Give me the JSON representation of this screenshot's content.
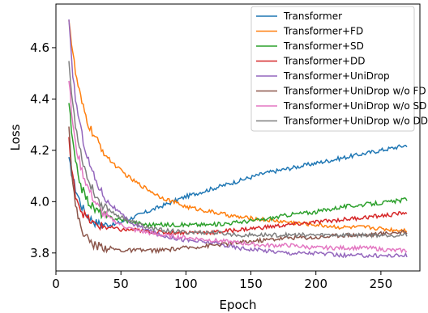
{
  "chart_data": {
    "type": "line",
    "xlabel": "Epoch",
    "ylabel": "Loss",
    "xlim": [
      0,
      280
    ],
    "ylim": [
      3.73,
      4.77
    ],
    "x_ticks": [
      0,
      50,
      100,
      150,
      200,
      250
    ],
    "y_ticks": [
      3.8,
      4.0,
      4.2,
      4.4,
      4.6
    ],
    "x_tick_labels": [
      "0",
      "50",
      "100",
      "150",
      "200",
      "250"
    ],
    "y_tick_labels": [
      "3.8",
      "4.0",
      "4.2",
      "4.4",
      "4.6"
    ],
    "grid": false,
    "legend_position": "top-right",
    "series": [
      {
        "name": "Transformer",
        "color": "#1f77b4",
        "x": [
          10,
          15,
          20,
          25,
          30,
          35,
          40,
          45,
          50,
          55,
          60,
          70,
          80,
          90,
          100,
          120,
          140,
          160,
          180,
          200,
          220,
          240,
          260,
          270
        ],
        "y": [
          4.16,
          4.05,
          3.98,
          3.94,
          3.92,
          3.91,
          3.91,
          3.91,
          3.92,
          3.93,
          3.94,
          3.96,
          3.98,
          4.0,
          4.02,
          4.05,
          4.08,
          4.11,
          4.13,
          4.15,
          4.17,
          4.19,
          4.21,
          4.22
        ]
      },
      {
        "name": "Transformer+FD",
        "color": "#ff7f0e",
        "x": [
          10,
          12,
          15,
          20,
          25,
          30,
          35,
          40,
          50,
          60,
          70,
          80,
          90,
          100,
          110,
          120,
          130,
          140,
          160,
          180,
          200,
          220,
          240,
          260,
          270
        ],
        "y": [
          4.72,
          4.62,
          4.5,
          4.38,
          4.3,
          4.25,
          4.21,
          4.17,
          4.12,
          4.08,
          4.05,
          4.02,
          4.0,
          3.98,
          3.97,
          3.96,
          3.95,
          3.94,
          3.93,
          3.92,
          3.91,
          3.9,
          3.9,
          3.89,
          3.89
        ]
      },
      {
        "name": "Transformer+SD",
        "color": "#2ca02c",
        "x": [
          10,
          12,
          15,
          20,
          25,
          30,
          40,
          50,
          60,
          70,
          80,
          100,
          120,
          140,
          160,
          180,
          200,
          220,
          240,
          260,
          270
        ],
        "y": [
          4.39,
          4.27,
          4.15,
          4.05,
          4.0,
          3.97,
          3.94,
          3.93,
          3.92,
          3.91,
          3.91,
          3.91,
          3.91,
          3.92,
          3.93,
          3.95,
          3.96,
          3.98,
          3.99,
          4.0,
          4.01
        ]
      },
      {
        "name": "Transformer+DD",
        "color": "#d62728",
        "x": [
          10,
          12,
          15,
          20,
          25,
          30,
          40,
          50,
          60,
          80,
          100,
          120,
          140,
          160,
          180,
          200,
          220,
          240,
          260,
          270
        ],
        "y": [
          4.25,
          4.12,
          4.03,
          3.96,
          3.93,
          3.91,
          3.9,
          3.89,
          3.89,
          3.88,
          3.88,
          3.88,
          3.89,
          3.9,
          3.91,
          3.92,
          3.93,
          3.94,
          3.95,
          3.96
        ]
      },
      {
        "name": "Transformer+UniDrop",
        "color": "#9467bd",
        "x": [
          10,
          12,
          15,
          20,
          25,
          30,
          35,
          40,
          50,
          60,
          70,
          80,
          100,
          120,
          140,
          160,
          180,
          200,
          220,
          240,
          260,
          270
        ],
        "y": [
          4.7,
          4.55,
          4.4,
          4.26,
          4.16,
          4.09,
          4.04,
          4.0,
          3.95,
          3.91,
          3.89,
          3.87,
          3.85,
          3.84,
          3.82,
          3.81,
          3.8,
          3.8,
          3.79,
          3.79,
          3.79,
          3.79
        ]
      },
      {
        "name": "Transformer+UniDrop w/o FD",
        "color": "#8c564b",
        "x": [
          10,
          12,
          15,
          20,
          25,
          30,
          40,
          50,
          60,
          80,
          100,
          120,
          140,
          160,
          180,
          200,
          220,
          240,
          260,
          270
        ],
        "y": [
          4.31,
          4.13,
          3.98,
          3.89,
          3.85,
          3.83,
          3.82,
          3.81,
          3.81,
          3.81,
          3.82,
          3.83,
          3.84,
          3.85,
          3.86,
          3.86,
          3.87,
          3.87,
          3.88,
          3.88
        ]
      },
      {
        "name": "Transformer+UniDrop w/o SD",
        "color": "#e377c2",
        "x": [
          10,
          12,
          15,
          20,
          25,
          30,
          35,
          40,
          50,
          60,
          70,
          80,
          100,
          120,
          140,
          160,
          180,
          200,
          220,
          240,
          260,
          270
        ],
        "y": [
          4.48,
          4.35,
          4.22,
          4.12,
          4.05,
          4.0,
          3.96,
          3.94,
          3.91,
          3.89,
          3.88,
          3.87,
          3.86,
          3.85,
          3.84,
          3.83,
          3.83,
          3.82,
          3.82,
          3.82,
          3.81,
          3.81
        ]
      },
      {
        "name": "Transformer+UniDrop w/o DD",
        "color": "#7f7f7f",
        "x": [
          10,
          12,
          15,
          20,
          25,
          30,
          35,
          40,
          50,
          60,
          70,
          80,
          100,
          120,
          140,
          160,
          180,
          200,
          220,
          240,
          260,
          270
        ],
        "y": [
          4.55,
          4.42,
          4.3,
          4.17,
          4.08,
          4.03,
          3.99,
          3.97,
          3.94,
          3.92,
          3.9,
          3.89,
          3.88,
          3.88,
          3.87,
          3.87,
          3.87,
          3.87,
          3.87,
          3.87,
          3.87,
          3.87
        ]
      }
    ]
  }
}
